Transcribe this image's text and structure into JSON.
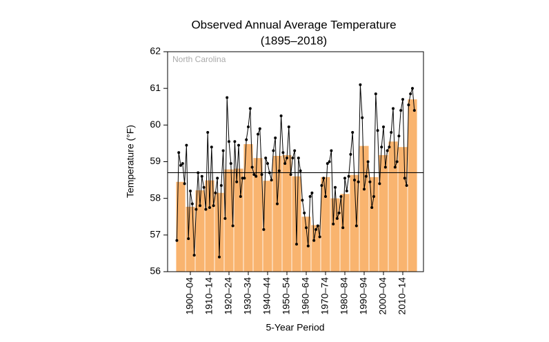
{
  "chart_data": {
    "type": "bar",
    "title": "Observed Annual Average Temperature",
    "subtitle": "(1895–2018)",
    "annotation": "North Carolina",
    "x_label": "5-Year Period",
    "y_label": "Temperature (°F)",
    "color": "#f9b46f",
    "categories": [
      null,
      "1900–04",
      null,
      "1910–14",
      null,
      "1920–24",
      null,
      "1930–34",
      null,
      "1940–44",
      null,
      "1950–54",
      null,
      "1960–64",
      null,
      "1970–74",
      null,
      "1980–84",
      null,
      "1990–94",
      null,
      "2000–04",
      null,
      "2010–14",
      null
    ],
    "values": [
      58.45,
      57.77,
      58.22,
      58.49,
      58.15,
      58.79,
      58.81,
      59.48,
      59.1,
      58.48,
      59.16,
      59.18,
      58.6,
      57.5,
      57.27,
      58.58,
      58.0,
      58.12,
      58.64,
      59.43,
      58.58,
      59.18,
      59.55,
      59.4,
      60.7
    ],
    "annual": {
      "color": "#000000",
      "x": [
        1895,
        1896,
        1897,
        1898,
        1899,
        1900,
        1901,
        1902,
        1903,
        1904,
        1905,
        1906,
        1907,
        1908,
        1909,
        1910,
        1911,
        1912,
        1913,
        1914,
        1915,
        1916,
        1917,
        1918,
        1919,
        1920,
        1921,
        1922,
        1923,
        1924,
        1925,
        1926,
        1927,
        1928,
        1929,
        1930,
        1931,
        1932,
        1933,
        1934,
        1935,
        1936,
        1937,
        1938,
        1939,
        1940,
        1941,
        1942,
        1943,
        1944,
        1945,
        1946,
        1947,
        1948,
        1949,
        1950,
        1951,
        1952,
        1953,
        1954,
        1955,
        1956,
        1957,
        1958,
        1959,
        1960,
        1961,
        1962,
        1963,
        1964,
        1965,
        1966,
        1967,
        1968,
        1969,
        1970,
        1971,
        1972,
        1973,
        1974,
        1975,
        1976,
        1977,
        1978,
        1979,
        1980,
        1981,
        1982,
        1983,
        1984,
        1985,
        1986,
        1987,
        1988,
        1989,
        1990,
        1991,
        1992,
        1993,
        1994,
        1995,
        1996,
        1997,
        1998,
        1999,
        2000,
        2001,
        2002,
        2003,
        2004,
        2005,
        2006,
        2007,
        2008,
        2009,
        2010,
        2011,
        2012,
        2013,
        2014,
        2015,
        2016,
        2017,
        2018
      ],
      "values": [
        56.85,
        59.25,
        58.9,
        58.95,
        58.4,
        59.45,
        56.9,
        58.2,
        57.85,
        56.45,
        57.7,
        58.7,
        57.8,
        58.6,
        58.3,
        57.7,
        59.8,
        57.75,
        59.4,
        57.8,
        58.15,
        58.55,
        56.4,
        58.35,
        59.3,
        57.45,
        60.75,
        59.55,
        58.95,
        57.25,
        59.55,
        58.45,
        59.45,
        58.05,
        58.55,
        58.55,
        59.6,
        59.95,
        60.45,
        58.85,
        58.65,
        58.6,
        59.75,
        59.9,
        58.65,
        57.15,
        59.1,
        58.95,
        58.7,
        58.5,
        59.3,
        59.65,
        57.85,
        58.75,
        60.25,
        59.25,
        58.95,
        59.1,
        59.95,
        58.65,
        59.1,
        59.3,
        56.75,
        59.1,
        58.75,
        57.95,
        57.6,
        57.2,
        56.7,
        58.05,
        58.15,
        56.85,
        57.15,
        57.25,
        56.95,
        58.35,
        58.55,
        58.05,
        58.95,
        59.0,
        59.3,
        57.3,
        58.3,
        57.45,
        57.6,
        58.05,
        57.2,
        58.55,
        58.2,
        58.6,
        59.2,
        59.8,
        58.5,
        57.25,
        58.45,
        61.1,
        60.2,
        58.25,
        58.6,
        59.0,
        58.45,
        57.75,
        58.05,
        60.85,
        59.85,
        58.4,
        59.4,
        59.95,
        58.85,
        59.3,
        59.4,
        59.8,
        60.45,
        58.85,
        59.0,
        59.7,
        60.4,
        60.7,
        58.55,
        58.35,
        60.55,
        60.85,
        61.0,
        60.4
      ]
    },
    "average": 58.7,
    "ylim": [
      56,
      62
    ],
    "yticks": [
      56,
      57,
      58,
      59,
      60,
      61,
      62
    ]
  }
}
